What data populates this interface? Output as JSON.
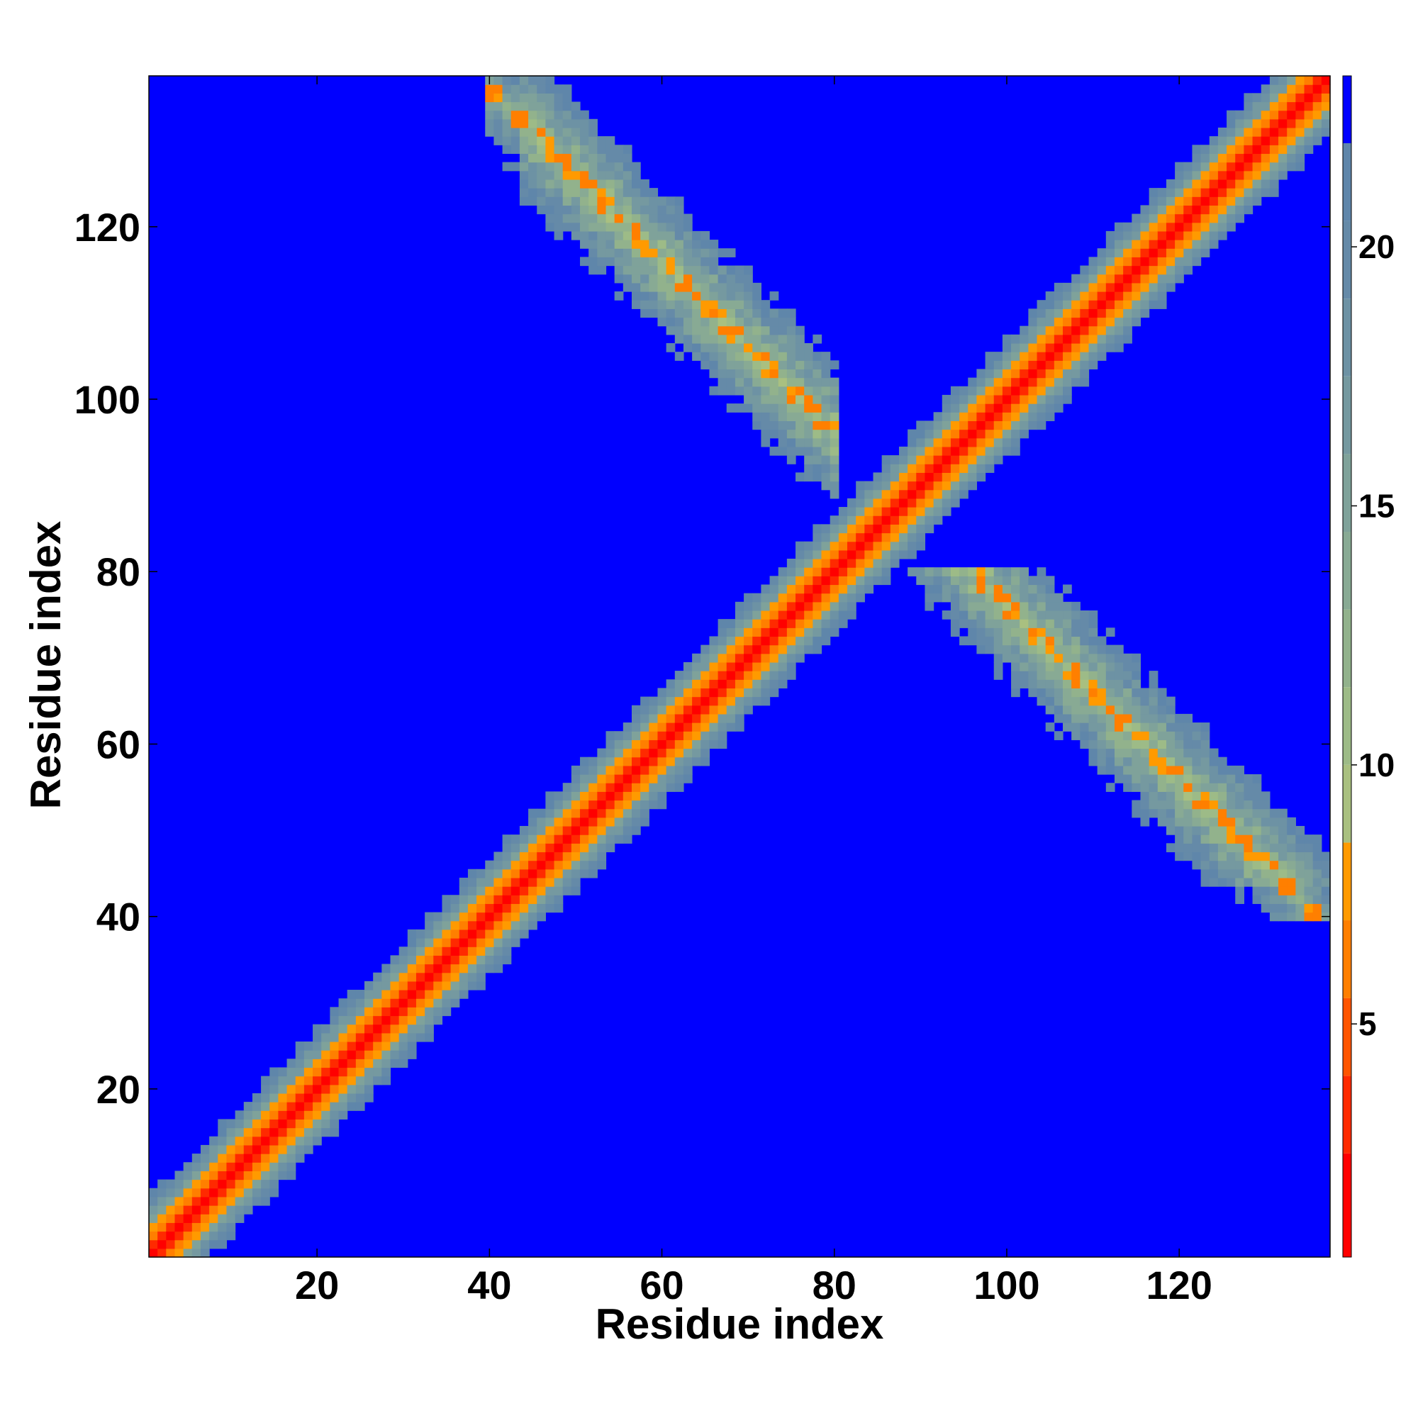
{
  "chart_data": {
    "type": "heatmap",
    "title": "",
    "xlabel": "Residue index",
    "ylabel": "Residue index",
    "xlim": [
      1,
      137
    ],
    "ylim": [
      1,
      137
    ],
    "x_ticks": [
      20,
      40,
      60,
      80,
      100,
      120
    ],
    "y_ticks": [
      20,
      40,
      60,
      80,
      100,
      120
    ],
    "n_residues": 137,
    "colorbar": {
      "ticks": [
        5,
        10,
        15,
        20
      ],
      "range": [
        0.5,
        23.3
      ],
      "levels": [
        {
          "max": 2.5,
          "color": "#ff0000"
        },
        {
          "max": 4.0,
          "color": "#ff2a00"
        },
        {
          "max": 5.5,
          "color": "#ff5500"
        },
        {
          "max": 7.0,
          "color": "#ff7f00"
        },
        {
          "max": 8.5,
          "color": "#ff9a00"
        },
        {
          "max": 10.0,
          "color": "#a9c080"
        },
        {
          "max": 11.5,
          "color": "#9dbb87"
        },
        {
          "max": 13.0,
          "color": "#92b28c"
        },
        {
          "max": 14.5,
          "color": "#88aa94"
        },
        {
          "max": 16.0,
          "color": "#7fa29a"
        },
        {
          "max": 17.5,
          "color": "#7599a0"
        },
        {
          "max": 19.0,
          "color": "#6d92a4"
        },
        {
          "max": 20.5,
          "color": "#658aa8"
        },
        {
          "max": 22.0,
          "color": "#5f86aa"
        },
        {
          "max": 23.3,
          "color": "#0000ff"
        }
      ],
      "background_color": "#0000ff"
    },
    "structure": {
      "diagonal_band": "distance grows with |i-j|; red on diagonal, orange at offsets 1-2, green-blue up to ~8 offset, saturated blue beyond",
      "antiparallel_contacts": [
        {
          "region": "residues 40-75 with 85-135",
          "pairing_sum": 176,
          "note": "off-diagonal cross arms with orange contact points"
        }
      ]
    }
  }
}
